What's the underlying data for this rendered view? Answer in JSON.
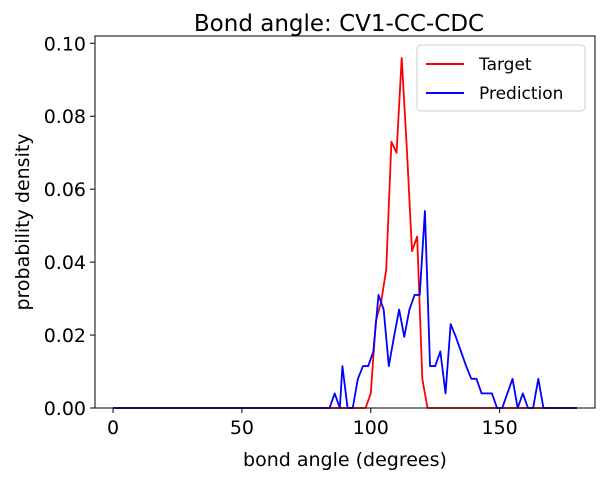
{
  "chart_data": {
    "type": "line",
    "title": "Bond angle: CV1-CC-CDC",
    "xlabel": "bond angle (degrees)",
    "ylabel": "probability density",
    "xlim": [
      -7,
      187
    ],
    "ylim": [
      0,
      0.102
    ],
    "xticks": [
      0,
      50,
      100,
      150
    ],
    "yticks": [
      0.0,
      0.02,
      0.04,
      0.06,
      0.08,
      0.1
    ],
    "xtick_labels": [
      "0",
      "50",
      "100",
      "150"
    ],
    "ytick_labels": [
      "0.00",
      "0.02",
      "0.04",
      "0.06",
      "0.08",
      "0.10"
    ],
    "grid": false,
    "legend_position": "top-right",
    "series": [
      {
        "name": "Target",
        "color": "#ff0000",
        "points": [
          [
            0,
            0
          ],
          [
            98,
            0
          ],
          [
            100,
            0.004
          ],
          [
            102,
            0.024
          ],
          [
            104,
            0.029
          ],
          [
            106,
            0.038
          ],
          [
            108,
            0.073
          ],
          [
            110,
            0.07
          ],
          [
            112,
            0.096
          ],
          [
            114,
            0.071
          ],
          [
            116,
            0.043
          ],
          [
            118,
            0.047
          ],
          [
            120,
            0.008
          ],
          [
            122,
            0
          ],
          [
            180,
            0
          ]
        ]
      },
      {
        "name": "Prediction",
        "color": "#0000ff",
        "points": [
          [
            0,
            0
          ],
          [
            84,
            0
          ],
          [
            86,
            0.004
          ],
          [
            88,
            0
          ],
          [
            89,
            0.0115
          ],
          [
            91,
            0
          ],
          [
            93,
            0
          ],
          [
            95,
            0.008
          ],
          [
            97,
            0.0115
          ],
          [
            99,
            0.0115
          ],
          [
            101,
            0.0155
          ],
          [
            103,
            0.031
          ],
          [
            105,
            0.027
          ],
          [
            107,
            0.0115
          ],
          [
            109,
            0.0195
          ],
          [
            111,
            0.027
          ],
          [
            113,
            0.0195
          ],
          [
            115,
            0.027
          ],
          [
            117,
            0.031
          ],
          [
            119,
            0.031
          ],
          [
            121,
            0.054
          ],
          [
            123,
            0.0115
          ],
          [
            125,
            0.0115
          ],
          [
            127,
            0.0155
          ],
          [
            129,
            0.004
          ],
          [
            131,
            0.023
          ],
          [
            133,
            0.0195
          ],
          [
            135,
            0.0155
          ],
          [
            137,
            0.0115
          ],
          [
            139,
            0.008
          ],
          [
            141,
            0.008
          ],
          [
            143,
            0.004
          ],
          [
            145,
            0.004
          ],
          [
            147,
            0.004
          ],
          [
            149,
            0
          ],
          [
            151,
            0
          ],
          [
            153,
            0.004
          ],
          [
            155,
            0.008
          ],
          [
            157,
            0
          ],
          [
            159,
            0.004
          ],
          [
            161,
            0
          ],
          [
            163,
            0
          ],
          [
            165,
            0.008
          ],
          [
            167,
            0
          ],
          [
            180,
            0
          ]
        ]
      }
    ]
  }
}
